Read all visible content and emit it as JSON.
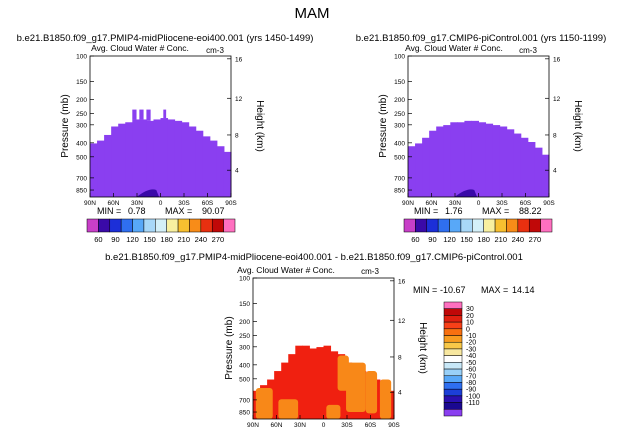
{
  "page": {
    "title": "MAM"
  },
  "chart_data": [
    {
      "type": "heatmap",
      "id": "panel1",
      "title": "b.e21.B1850.f09_g17.PMIP4-midPliocene-eoi400.001 (yrs 1450-1499)",
      "subtitle": "Avg. Cloud Water # Conc.",
      "units": "cm-3",
      "ylabel": "Pressure (mb)",
      "y2label": "Height (km)",
      "xlabel": "",
      "x_ticks": [
        "90N",
        "60N",
        "30N",
        "0",
        "30S",
        "60S",
        "90S"
      ],
      "y_ticks": [
        "100",
        "150",
        "200",
        "250",
        "300",
        "400",
        "500",
        "700",
        "850"
      ],
      "y2_ticks": [
        "16",
        "12",
        "8",
        "4"
      ],
      "min_label": "MIN =",
      "min_value": "0.78",
      "max_label": "MAX =",
      "max_value": "90.07",
      "colorbar_orientation": "horizontal",
      "colorbar_colors": [
        "#c83fc8",
        "#3a0aa8",
        "#1c2fd8",
        "#2f6ff0",
        "#58a8f8",
        "#a8d8f8",
        "#d4f0f8",
        "#f8f0a0",
        "#f8c030",
        "#f88c18",
        "#e83010",
        "#c00808",
        "#ff70c0"
      ],
      "colorbar_labels": [
        "60",
        "90",
        "120",
        "150",
        "180",
        "210",
        "240",
        "270"
      ],
      "field_colors": [
        "#8a3ff0",
        "#3a0aa8"
      ],
      "values": {
        "min": 0.78,
        "max": 90.07
      }
    },
    {
      "type": "heatmap",
      "id": "panel2",
      "title": "b.e21.B1850.f09_g17.CMIP6-piControl.001 (yrs 1150-1199)",
      "subtitle": "Avg. Cloud Water # Conc.",
      "units": "cm-3",
      "ylabel": "Pressure (mb)",
      "y2label": "Height (km)",
      "xlabel": "",
      "x_ticks": [
        "90N",
        "60N",
        "30N",
        "0",
        "30S",
        "60S",
        "90S"
      ],
      "y_ticks": [
        "100",
        "150",
        "200",
        "250",
        "300",
        "400",
        "500",
        "700",
        "850"
      ],
      "y2_ticks": [
        "16",
        "12",
        "8",
        "4"
      ],
      "min_label": "MIN =",
      "min_value": "1.76",
      "max_label": "MAX =",
      "max_value": "88.22",
      "colorbar_orientation": "horizontal",
      "colorbar_colors": [
        "#c83fc8",
        "#3a0aa8",
        "#1c2fd8",
        "#2f6ff0",
        "#58a8f8",
        "#a8d8f8",
        "#d4f0f8",
        "#f8f0a0",
        "#f8c030",
        "#f88c18",
        "#e83010",
        "#c00808",
        "#ff70c0"
      ],
      "colorbar_labels": [
        "60",
        "90",
        "120",
        "150",
        "180",
        "210",
        "240",
        "270"
      ],
      "field_colors": [
        "#8a3ff0",
        "#3a0aa8"
      ],
      "values": {
        "min": 1.76,
        "max": 88.22
      }
    },
    {
      "type": "heatmap",
      "id": "panel3",
      "title": "b.e21.B1850.f09_g17.PMIP4-midPliocene-eoi400.001 - b.e21.B1850.f09_g17.CMIP6-piControl.001",
      "subtitle": "Avg. Cloud Water # Conc.",
      "units": "cm-3",
      "ylabel": "Pressure (mb)",
      "y2label": "Height (km)",
      "xlabel": "",
      "x_ticks": [
        "90N",
        "60N",
        "30N",
        "0",
        "30S",
        "60S",
        "90S"
      ],
      "y_ticks": [
        "100",
        "150",
        "200",
        "250",
        "300",
        "400",
        "500",
        "700",
        "850"
      ],
      "y2_ticks": [
        "16",
        "12",
        "8",
        "4"
      ],
      "min_label": "MIN =",
      "min_value": "-10.67",
      "max_label": "MAX =",
      "max_value": "14.14",
      "colorbar_orientation": "vertical",
      "colorbar_colors": [
        "#ff70c0",
        "#c00808",
        "#e02010",
        "#f84018",
        "#f87010",
        "#f89c20",
        "#f8c848",
        "#f8e8a0",
        "#ffffff",
        "#c8e8f8",
        "#98d0f8",
        "#58a8f8",
        "#2f6ff0",
        "#1c3fd8",
        "#2a10b0",
        "#1a0890",
        "#8a3ff0"
      ],
      "colorbar_labels": [
        "30",
        "20",
        "10",
        "0",
        "-10",
        "-20",
        "-30",
        "-40",
        "-50",
        "-60",
        "-70",
        "-80",
        "-90",
        "-100",
        "-110"
      ],
      "field_colors": [
        "#f02010",
        "#f88818"
      ],
      "values": {
        "min": -10.67,
        "max": 14.14
      }
    }
  ]
}
